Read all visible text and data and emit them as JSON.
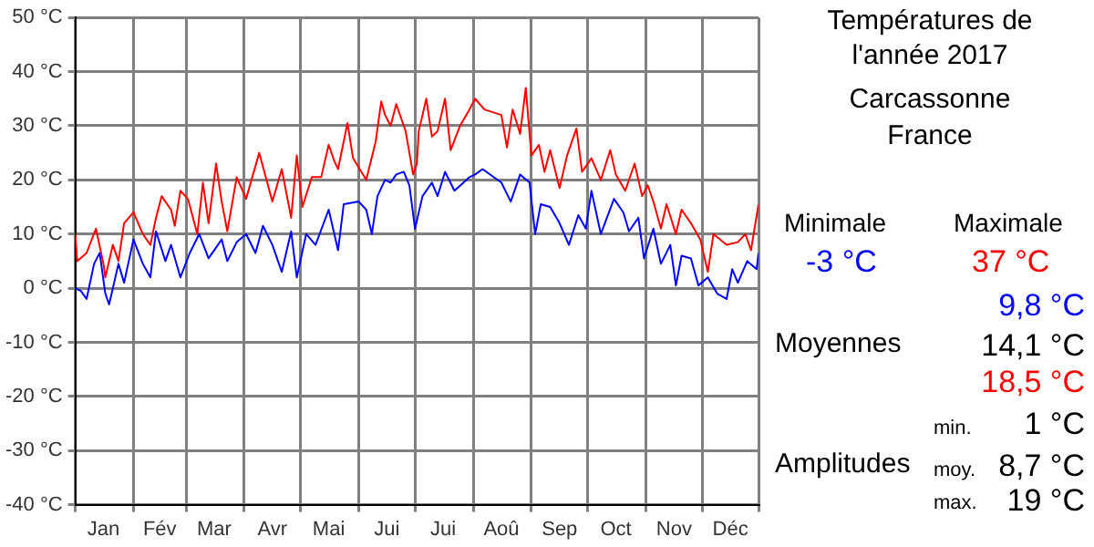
{
  "chart_data": {
    "type": "line",
    "title": "Températures de l'année 2017",
    "subtitle": "Carcassonne\nFrance",
    "annotations": [
      "Minimale",
      "-3 °C",
      "Maximale",
      "37 °C",
      "9,8 °C",
      "Moyennes",
      "14,1 °C",
      "18,5 °C",
      "min.",
      "1 °C",
      "Amplitudes",
      "moy.",
      "8,7 °C",
      "max.",
      "19 °C"
    ],
    "xlim": [
      "2017-01-01",
      "2017-12-31"
    ],
    "xticks": [
      {
        "value": "2017-01-01",
        "label": null
      },
      {
        "value": "2017-01-16",
        "label": "Jan"
      },
      {
        "value": "2017-02-01",
        "label": null
      },
      {
        "value": "2017-02-15",
        "label": "Fév"
      },
      {
        "value": "2017-03-01",
        "label": null
      },
      {
        "value": "2017-03-16",
        "label": "Mar"
      },
      {
        "value": "2017-04-01",
        "label": null
      },
      {
        "value": "2017-04-16",
        "label": "Avr"
      },
      {
        "value": "2017-05-01",
        "label": null
      },
      {
        "value": "2017-05-16",
        "label": "Mai"
      },
      {
        "value": "2017-06-01",
        "label": null
      },
      {
        "value": "2017-06-16",
        "label": "Jui"
      },
      {
        "value": "2017-07-01",
        "label": null
      },
      {
        "value": "2017-07-16",
        "label": "Jui"
      },
      {
        "value": "2017-08-01",
        "label": null
      },
      {
        "value": "2017-08-16",
        "label": "Aoû"
      },
      {
        "value": "2017-09-01",
        "label": null
      },
      {
        "value": "2017-09-16",
        "label": "Sep"
      },
      {
        "value": "2017-10-01",
        "label": null
      },
      {
        "value": "2017-10-16",
        "label": "Oct"
      },
      {
        "value": "2017-11-01",
        "label": null
      },
      {
        "value": "2017-11-16",
        "label": "Nov"
      },
      {
        "value": "2017-12-01",
        "label": null
      },
      {
        "value": "2017-12-16",
        "label": "Déc"
      },
      {
        "value": "2017-12-31",
        "label": null
      }
    ],
    "ylim": [
      -40,
      50
    ],
    "yticks": [
      {
        "value": -40,
        "label": "-40 °C"
      },
      {
        "value": -30,
        "label": "-30 °C"
      },
      {
        "value": -20,
        "label": "-20 °C"
      },
      {
        "value": -10,
        "label": "-10 °C"
      },
      {
        "value": 0,
        "label": "0 °C"
      },
      {
        "value": 10,
        "label": "10 °C"
      },
      {
        "value": 20,
        "label": "20 °C"
      },
      {
        "value": 30,
        "label": "30 °C"
      },
      {
        "value": 40,
        "label": "40 °C"
      },
      {
        "value": 50,
        "label": "50 °C"
      }
    ],
    "grid": true,
    "series": [
      {
        "color": "#0000ff",
        "x": [
          "2017-01-01",
          "2017-01-04",
          "2017-01-07",
          "2017-01-11",
          "2017-01-14",
          "2017-01-17",
          "2017-01-19",
          "2017-01-24",
          "2017-01-27",
          "2017-02-01",
          "2017-02-06",
          "2017-02-10",
          "2017-02-13",
          "2017-02-18",
          "2017-02-21",
          "2017-02-26",
          "2017-03-03",
          "2017-03-08",
          "2017-03-13",
          "2017-03-20",
          "2017-03-23",
          "2017-03-28",
          "2017-04-02",
          "2017-04-07",
          "2017-04-11",
          "2017-04-16",
          "2017-04-21",
          "2017-04-26",
          "2017-04-29",
          "2017-05-04",
          "2017-05-09",
          "2017-05-16",
          "2017-05-21",
          "2017-05-24",
          "2017-06-01",
          "2017-06-05",
          "2017-06-08",
          "2017-06-11",
          "2017-06-15",
          "2017-06-18",
          "2017-06-21",
          "2017-06-25",
          "2017-06-28",
          "2017-07-01",
          "2017-07-05",
          "2017-07-10",
          "2017-07-13",
          "2017-07-17",
          "2017-07-22",
          "2017-07-30",
          "2017-08-02",
          "2017-08-06",
          "2017-08-16",
          "2017-08-21",
          "2017-08-26",
          "2017-08-31",
          "2017-09-03",
          "2017-09-06",
          "2017-09-11",
          "2017-09-16",
          "2017-09-21",
          "2017-09-26",
          "2017-09-30",
          "2017-10-03",
          "2017-10-08",
          "2017-10-15",
          "2017-10-20",
          "2017-10-23",
          "2017-10-28",
          "2017-10-31",
          "2017-11-05",
          "2017-11-09",
          "2017-11-14",
          "2017-11-17",
          "2017-11-20",
          "2017-11-25",
          "2017-11-29",
          "2017-12-04",
          "2017-12-09",
          "2017-12-14",
          "2017-12-17",
          "2017-12-20",
          "2017-12-25",
          "2017-12-30",
          "2017-12-31"
        ],
        "values": [
          0,
          -0.5,
          -2,
          4.5,
          6.5,
          -1,
          -3,
          4.5,
          1,
          9,
          4.5,
          2,
          10.5,
          5,
          8,
          2,
          6.5,
          10,
          5.5,
          9,
          5,
          8.5,
          10,
          6.5,
          11.5,
          8,
          3,
          10.5,
          2,
          10,
          8,
          14.5,
          7,
          15.5,
          16,
          14.5,
          10,
          17,
          20,
          19.5,
          21,
          21.5,
          19,
          11,
          17,
          19.5,
          17,
          21.5,
          18,
          20.5,
          21,
          22,
          19.5,
          16,
          21,
          19.5,
          10,
          15.5,
          15,
          12,
          8,
          13.5,
          11,
          18,
          10,
          16.5,
          14,
          10.5,
          13,
          5.5,
          11,
          4.5,
          8,
          0.5,
          6,
          5.5,
          0.5,
          2,
          -1,
          -2,
          3.5,
          1,
          5,
          3.5,
          6.5
        ]
      },
      {
        "color": "#ff0000",
        "x": [
          "2017-01-01",
          "2017-01-02",
          "2017-01-07",
          "2017-01-12",
          "2017-01-16",
          "2017-01-17",
          "2017-01-21",
          "2017-01-24",
          "2017-01-27",
          "2017-02-01",
          "2017-02-06",
          "2017-02-10",
          "2017-02-13",
          "2017-02-16",
          "2017-02-21",
          "2017-02-23",
          "2017-02-26",
          "2017-03-02",
          "2017-03-07",
          "2017-03-10",
          "2017-03-13",
          "2017-03-17",
          "2017-03-20",
          "2017-03-23",
          "2017-03-28",
          "2017-04-02",
          "2017-04-09",
          "2017-04-16",
          "2017-04-21",
          "2017-04-26",
          "2017-04-29",
          "2017-05-02",
          "2017-05-07",
          "2017-05-12",
          "2017-05-16",
          "2017-05-19",
          "2017-05-21",
          "2017-05-26",
          "2017-05-29",
          "2017-06-05",
          "2017-06-10",
          "2017-06-13",
          "2017-06-15",
          "2017-06-18",
          "2017-06-21",
          "2017-06-26",
          "2017-06-30",
          "2017-07-02",
          "2017-07-03",
          "2017-07-07",
          "2017-07-10",
          "2017-07-13",
          "2017-07-17",
          "2017-07-20",
          "2017-07-25",
          "2017-07-30",
          "2017-08-02",
          "2017-08-07",
          "2017-08-16",
          "2017-08-19",
          "2017-08-22",
          "2017-08-26",
          "2017-08-29",
          "2017-09-01",
          "2017-09-05",
          "2017-09-08",
          "2017-09-11",
          "2017-09-16",
          "2017-09-20",
          "2017-09-25",
          "2017-09-28",
          "2017-10-03",
          "2017-10-08",
          "2017-10-13",
          "2017-10-16",
          "2017-10-21",
          "2017-10-26",
          "2017-10-30",
          "2017-11-02",
          "2017-11-05",
          "2017-11-09",
          "2017-11-12",
          "2017-11-17",
          "2017-11-20",
          "2017-11-25",
          "2017-11-30",
          "2017-12-04",
          "2017-12-07",
          "2017-12-14",
          "2017-12-20",
          "2017-12-24",
          "2017-12-27",
          "2017-12-31"
        ],
        "values": [
          10,
          5,
          6.5,
          11,
          4.5,
          2,
          8,
          5,
          12,
          14,
          10,
          8,
          13,
          17,
          14.5,
          11.5,
          18,
          16.5,
          10,
          19.5,
          12,
          23,
          16,
          10.5,
          20.5,
          16.5,
          25,
          16,
          22,
          13,
          24.5,
          15,
          20.5,
          20.5,
          26.5,
          23.5,
          22,
          30.5,
          24,
          20,
          27,
          34.5,
          32,
          30,
          34,
          29,
          21,
          23,
          29,
          35,
          28,
          29,
          35,
          25.5,
          30,
          33,
          35,
          33,
          32,
          26,
          33,
          28.5,
          37,
          24.5,
          26.5,
          21.5,
          25.5,
          18.5,
          24.5,
          29.5,
          21.5,
          24,
          20,
          25.5,
          21,
          18,
          23,
          17,
          19,
          16,
          11,
          15.5,
          10,
          14.5,
          12,
          9,
          3,
          10,
          8,
          8.5,
          10,
          7,
          15.5
        ]
      }
    ]
  }
}
